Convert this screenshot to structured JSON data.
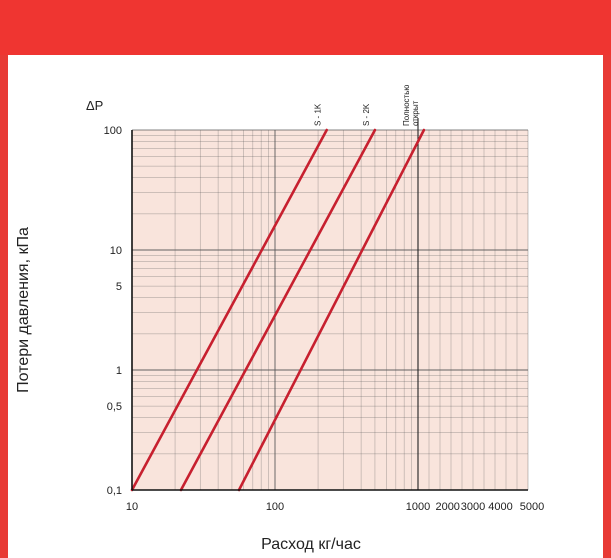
{
  "colors": {
    "header": "#ef3531",
    "border": "#e83a35",
    "plot_bg": "#f9e4dc",
    "grid": "#5a5a5a",
    "curve": "#c7202f"
  },
  "chart_data": {
    "type": "line",
    "x_scale": "log",
    "y_scale": "log",
    "xlim": [
      10,
      1000
    ],
    "ylim": [
      0.1,
      100
    ],
    "y_axis_symbol": "ΔP",
    "ylabel": "Потери давления, кПа",
    "xlabel": "Расход кг/час",
    "x_tick_labels": [
      {
        "value": 10,
        "label": "10"
      },
      {
        "value": 100,
        "label": "100"
      },
      {
        "value": 1000,
        "label": "1000"
      }
    ],
    "x_extra_labels": [
      "2000",
      "3000",
      "4000",
      "5000"
    ],
    "y_tick_labels": [
      {
        "value": 100,
        "label": "100"
      },
      {
        "value": 10,
        "label": "10"
      },
      {
        "value": 5,
        "label": "5"
      },
      {
        "value": 1,
        "label": "1"
      },
      {
        "value": 0.5,
        "label": "0,5"
      },
      {
        "value": 0.1,
        "label": "0,1"
      }
    ],
    "series": [
      {
        "name": "S - 1K",
        "x": [
          10,
          230
        ],
        "y": [
          0.1,
          100
        ]
      },
      {
        "name": "S - 2K",
        "x": [
          22,
          500
        ],
        "y": [
          0.1,
          100
        ]
      },
      {
        "name": "Полностью открыт",
        "x": [
          56,
          1100
        ],
        "y": [
          0.1,
          100
        ]
      }
    ],
    "reference_line_x": 1000,
    "grid": true
  }
}
